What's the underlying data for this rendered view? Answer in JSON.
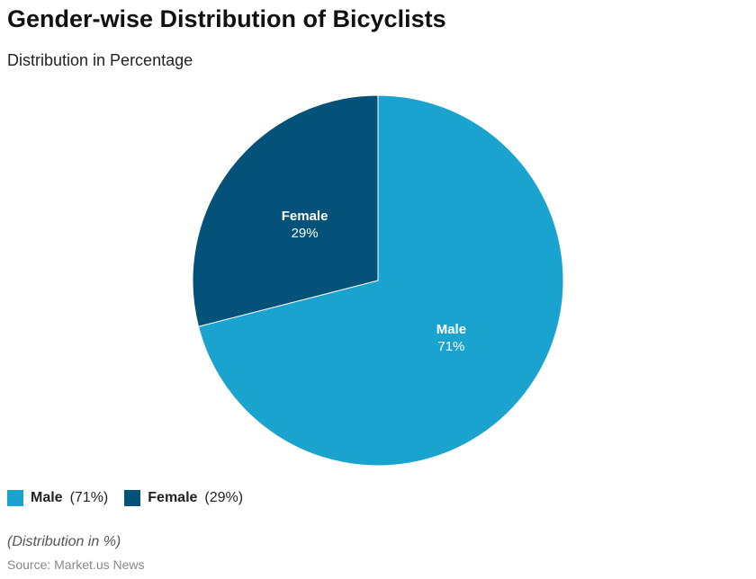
{
  "chart_data": {
    "type": "pie",
    "title": "Gender-wise Distribution of Bicyclists",
    "subtitle": "Distribution in Percentage",
    "categories": [
      "Male",
      "Female"
    ],
    "values": [
      71,
      29
    ],
    "value_labels": [
      "71%",
      "29%"
    ],
    "legend_labels": [
      "(71%)",
      "(29%)"
    ],
    "colors": [
      "#1aa3cf",
      "#04527a"
    ],
    "start_angle": "top, clockwise",
    "legend_position": "bottom-left",
    "note": "(Distribution in %)",
    "source": "Source: Market.us News"
  }
}
